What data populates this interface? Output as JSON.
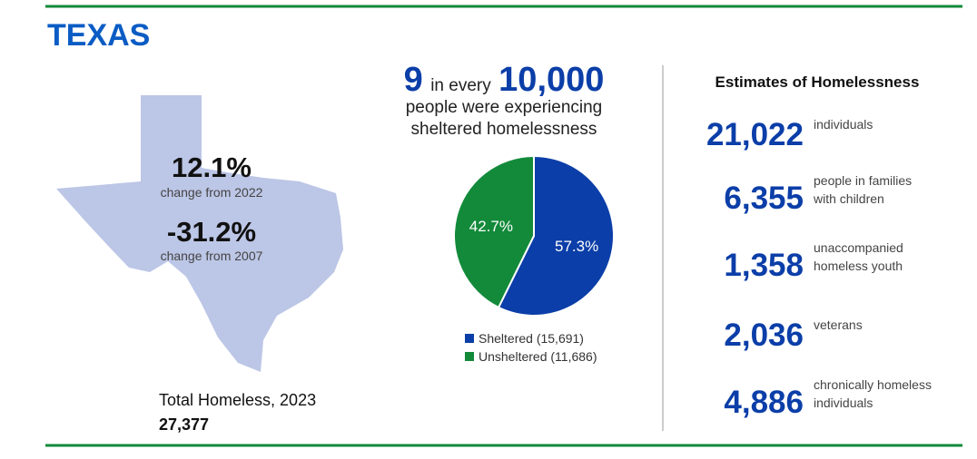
{
  "title": "TEXAS",
  "map": {
    "stats": [
      {
        "value": "12.1%",
        "label": "change from 2022"
      },
      {
        "value": "-31.2%",
        "label": "change from 2007"
      }
    ]
  },
  "total": {
    "label": "Total Homeless, 2023",
    "value": "27,377"
  },
  "headline": {
    "number": "9",
    "text": "in every",
    "base": "10,000",
    "lines": [
      "people were experiencing",
      "sheltered homelessness"
    ]
  },
  "chart_data": {
    "type": "pie",
    "categories": [
      "Sheltered (15,691)",
      "Unsheltered (11,686)"
    ],
    "values": [
      57.3,
      42.7
    ],
    "value_labels": [
      "57.3%",
      "42.7%"
    ],
    "colors": [
      "#0b3ea8",
      "#128a3a"
    ]
  },
  "estimates": {
    "title": "Estimates of Homelessness",
    "items": [
      {
        "number": "21,022",
        "lines": [
          "individuals"
        ]
      },
      {
        "number": "6,355",
        "lines": [
          "people in families",
          "with children"
        ]
      },
      {
        "number": "1,358",
        "lines": [
          "unaccompanied",
          "homeless youth"
        ]
      },
      {
        "number": "2,036",
        "lines": [
          "veterans"
        ]
      },
      {
        "number": "4,886",
        "lines": [
          "chronically homeless",
          "individuals"
        ]
      }
    ]
  }
}
